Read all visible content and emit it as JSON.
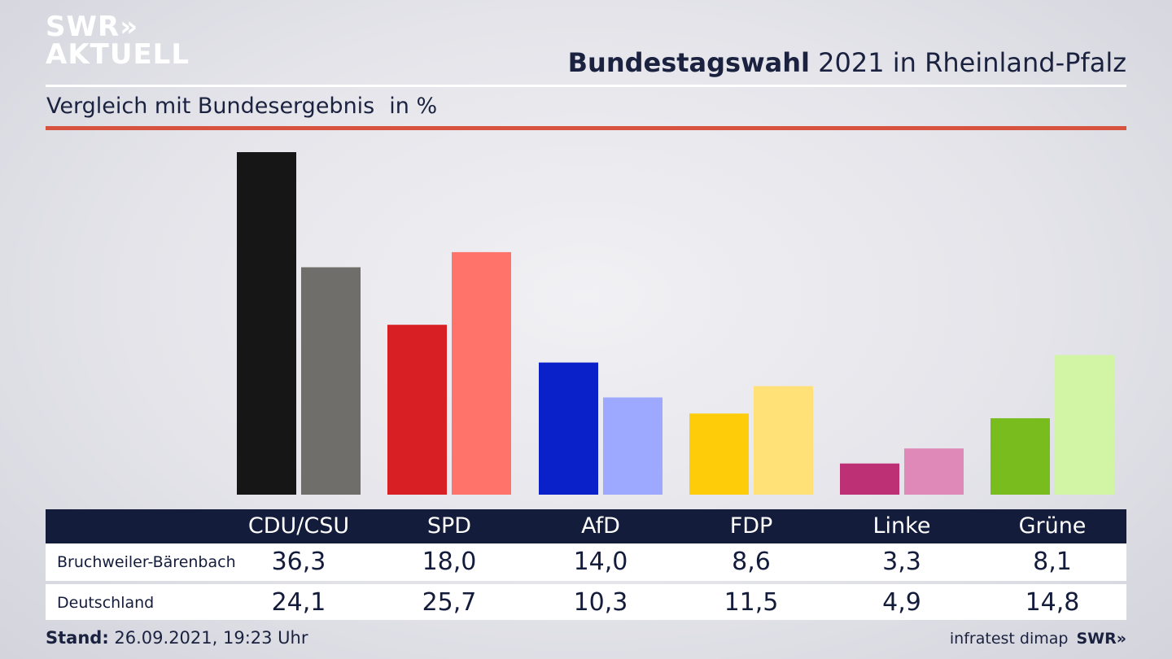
{
  "brand": {
    "line1": "SWR»",
    "line2": "AKTUELL"
  },
  "header": {
    "title_bold": "Bundestagswahl",
    "title_rest": " 2021 in Rheinland-Pfalz"
  },
  "subtitle": {
    "text": "Vergleich mit Bundesergebnis",
    "unit": "in %"
  },
  "chart_data": {
    "type": "bar",
    "categories": [
      "CDU/CSU",
      "SPD",
      "AfD",
      "FDP",
      "Linke",
      "Grüne"
    ],
    "series": [
      {
        "name": "Bruchweiler-Bärenbach",
        "values": [
          36.3,
          18.0,
          14.0,
          8.6,
          3.3,
          8.1
        ],
        "colors": [
          "#161616",
          "#d71f24",
          "#0a20c8",
          "#ffcc0a",
          "#be3075",
          "#78bc1d"
        ]
      },
      {
        "name": "Deutschland",
        "values": [
          24.1,
          25.7,
          10.3,
          11.5,
          4.9,
          14.8
        ],
        "colors": [
          "#6f6e6b",
          "#ff736b",
          "#9ca9ff",
          "#ffe177",
          "#df89b9",
          "#d1f5a5"
        ]
      }
    ],
    "ylim": [
      0,
      36.3
    ]
  },
  "table": {
    "headers": [
      "CDU/CSU",
      "SPD",
      "AfD",
      "FDP",
      "Linke",
      "Grüne"
    ],
    "rows": [
      {
        "label": "Bruchweiler-Bärenbach",
        "values": [
          "36,3",
          "18,0",
          "14,0",
          "8,6",
          "3,3",
          "8,1"
        ]
      },
      {
        "label": "Deutschland",
        "values": [
          "24,1",
          "25,7",
          "10,3",
          "11,5",
          "4,9",
          "14,8"
        ]
      }
    ]
  },
  "footer": {
    "stand_label": "Stand:",
    "stand_value": " 26.09.2021, 19:23 Uhr",
    "source": "infratest dimap",
    "swr": "SWR»"
  }
}
